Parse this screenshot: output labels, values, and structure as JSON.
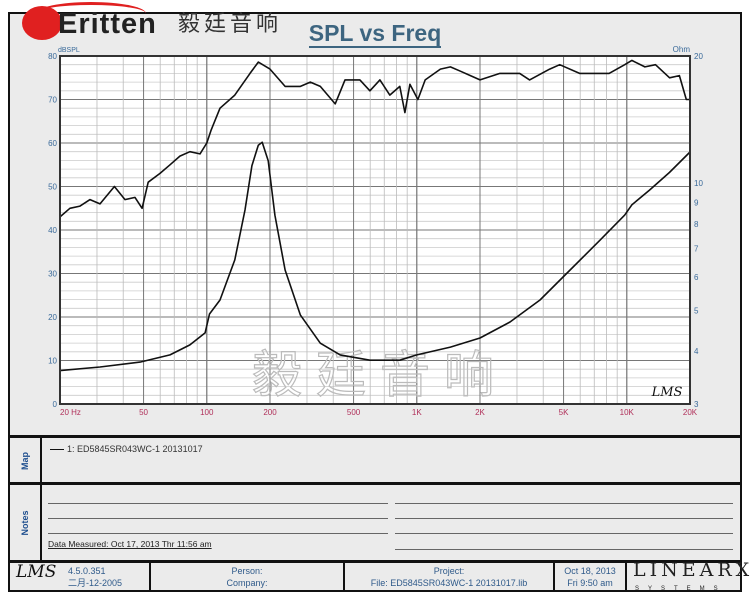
{
  "logo": {
    "text_en": "Eritten",
    "text_cn": "毅廷音响"
  },
  "watermark": "毅廷音响",
  "chart_data": {
    "type": "line",
    "title": "SPL vs Freq",
    "x_scale": "log",
    "xlim": [
      20,
      20000
    ],
    "x_ticks": [
      {
        "v": 20,
        "label": "20  Hz"
      },
      {
        "v": 50,
        "label": "50"
      },
      {
        "v": 100,
        "label": "100"
      },
      {
        "v": 200,
        "label": "200"
      },
      {
        "v": 500,
        "label": "500"
      },
      {
        "v": 1000,
        "label": "1K"
      },
      {
        "v": 2000,
        "label": "2K"
      },
      {
        "v": 5000,
        "label": "5K"
      },
      {
        "v": 10000,
        "label": "10K"
      },
      {
        "v": 20000,
        "label": "20K"
      }
    ],
    "ylabel_left": "dBSPL",
    "ylim_left": [
      0,
      80
    ],
    "y_ticks_left": [
      "0",
      "10",
      "20",
      "30",
      "40",
      "50",
      "60",
      "70",
      "80"
    ],
    "ylabel_right": "Ohm",
    "y_scale_right": "log",
    "ylim_right": [
      3,
      20
    ],
    "y_ticks_right": [
      "3",
      "4",
      "5",
      "6",
      "7",
      "8",
      "9",
      "10",
      "20"
    ],
    "grid": true,
    "corner_label": "LMS",
    "series": [
      {
        "axis": "left",
        "x": [
          20,
          22.3,
          24.9,
          27.8,
          31,
          36.3,
          40.8,
          45.5,
          49.2,
          52.6,
          59.9,
          66.8,
          74.5,
          83.1,
          92.8,
          100,
          105,
          115.6,
          136,
          160.6,
          175.9,
          200,
          236,
          279,
          311,
          347,
          409,
          455,
          536,
          598,
          667,
          744,
          830,
          878,
          927,
          1012,
          1097,
          1296,
          1446,
          1613,
          1800,
          2000,
          2487,
          3091,
          3447,
          4294,
          4790,
          5960,
          6650,
          8240,
          9770,
          10560,
          12200,
          13700,
          16000,
          17800,
          19200,
          20000
        ],
        "y": [
          43,
          45,
          45.5,
          47,
          46,
          50,
          47,
          47.5,
          45,
          51,
          53,
          55,
          57,
          58,
          57.5,
          60,
          63,
          68,
          71,
          76,
          78.6,
          77,
          73,
          73,
          74,
          73,
          69,
          74.5,
          74.5,
          72,
          74.5,
          71,
          73,
          67,
          73.5,
          70,
          74.5,
          77,
          77.5,
          76.5,
          75.5,
          74.5,
          76,
          76,
          74.5,
          77,
          78,
          76,
          76,
          76,
          78,
          79,
          77.5,
          78,
          75,
          75.5,
          70,
          70
        ]
      },
      {
        "axis": "right",
        "x": [
          20,
          31,
          48.1,
          66.8,
          83.1,
          98.2,
          103,
          115.6,
          136,
          152,
          164,
          176,
          183.6,
          196,
          211,
          236,
          279,
          347,
          432,
          598,
          830,
          1000,
          1446,
          2000,
          2780,
          3860,
          5370,
          7460,
          9770,
          10560,
          12830,
          15950,
          20000
        ],
        "y": [
          3.6,
          3.67,
          3.77,
          3.92,
          4.14,
          4.42,
          4.9,
          5.29,
          6.58,
          8.64,
          11.0,
          12.3,
          12.5,
          11.3,
          8.4,
          6.23,
          4.87,
          4.18,
          3.92,
          3.81,
          3.81,
          3.92,
          4.09,
          4.3,
          4.69,
          5.29,
          6.23,
          7.33,
          8.4,
          8.88,
          9.63,
          10.6,
          11.85
        ]
      }
    ]
  },
  "map": {
    "label": "Map",
    "entry": "1: ED5845SR043WC-1   20131017"
  },
  "notes": {
    "label": "Notes",
    "measured": "Data Measured: Oct 17, 2013  Thr 11:56 am"
  },
  "footer": {
    "lms": "LMS",
    "version": "4.5.0.351",
    "build_date": "二月-12-2005",
    "person": "Person:",
    "company": "Company:",
    "project": "Project:",
    "file": "File: ED5845SR043WC-1  20131017.lib",
    "date": "Oct 18, 2013",
    "time": "Fri  9:50 am",
    "brand": "LINEARX",
    "brand_sub": "SYSTEMS"
  },
  "colors": {
    "title": "#3d6580",
    "axis_left": "#3a6a9a",
    "axis_x": "#b0305a",
    "curve": "#111111",
    "panel": "#ebebeb",
    "logo_red": "#e02020"
  }
}
